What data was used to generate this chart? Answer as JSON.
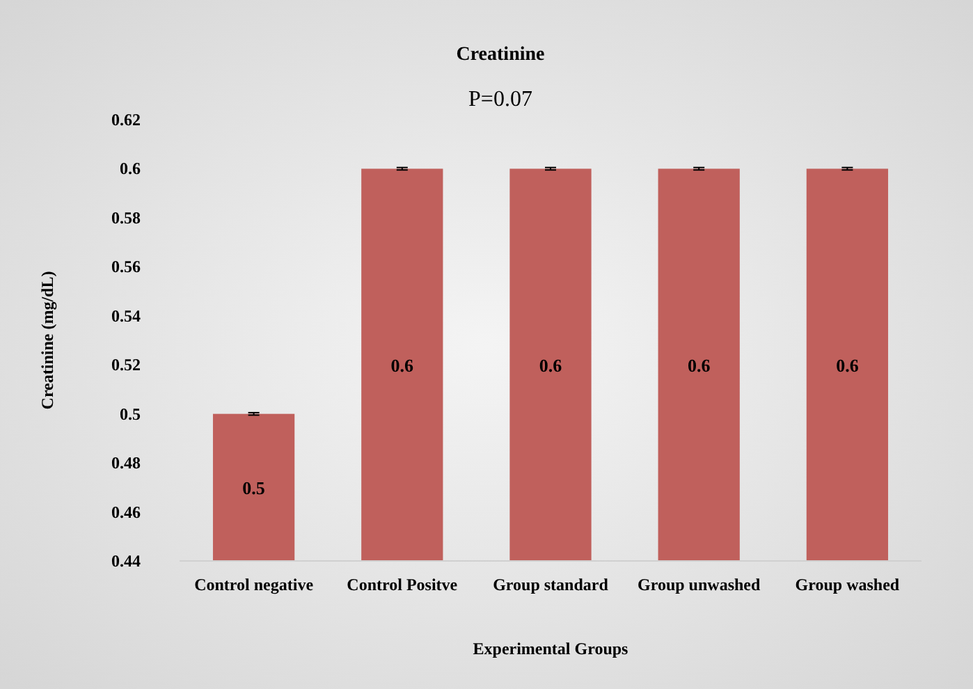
{
  "chart_data": {
    "type": "bar",
    "title": "Creatinine",
    "xlabel": "Experimental Groups",
    "ylabel": "Creatinine (mg/dL)",
    "annotations": [
      "P=0.07"
    ],
    "categories": [
      "Control negative",
      "Control Positve",
      "Group standard",
      "Group unwashed",
      "Group washed"
    ],
    "values": [
      0.5,
      0.6,
      0.6,
      0.6,
      0.6
    ],
    "errors": [
      0.0005,
      0.0005,
      0.0005,
      0.0005,
      0.0005
    ],
    "color": "#c0605c",
    "ylim": [
      0.44,
      0.62
    ],
    "yticks": [
      0.44,
      0.46,
      0.48,
      0.5,
      0.52,
      0.54,
      0.56,
      0.58,
      0.6,
      0.62
    ],
    "data_labels": true,
    "grid": false
  }
}
